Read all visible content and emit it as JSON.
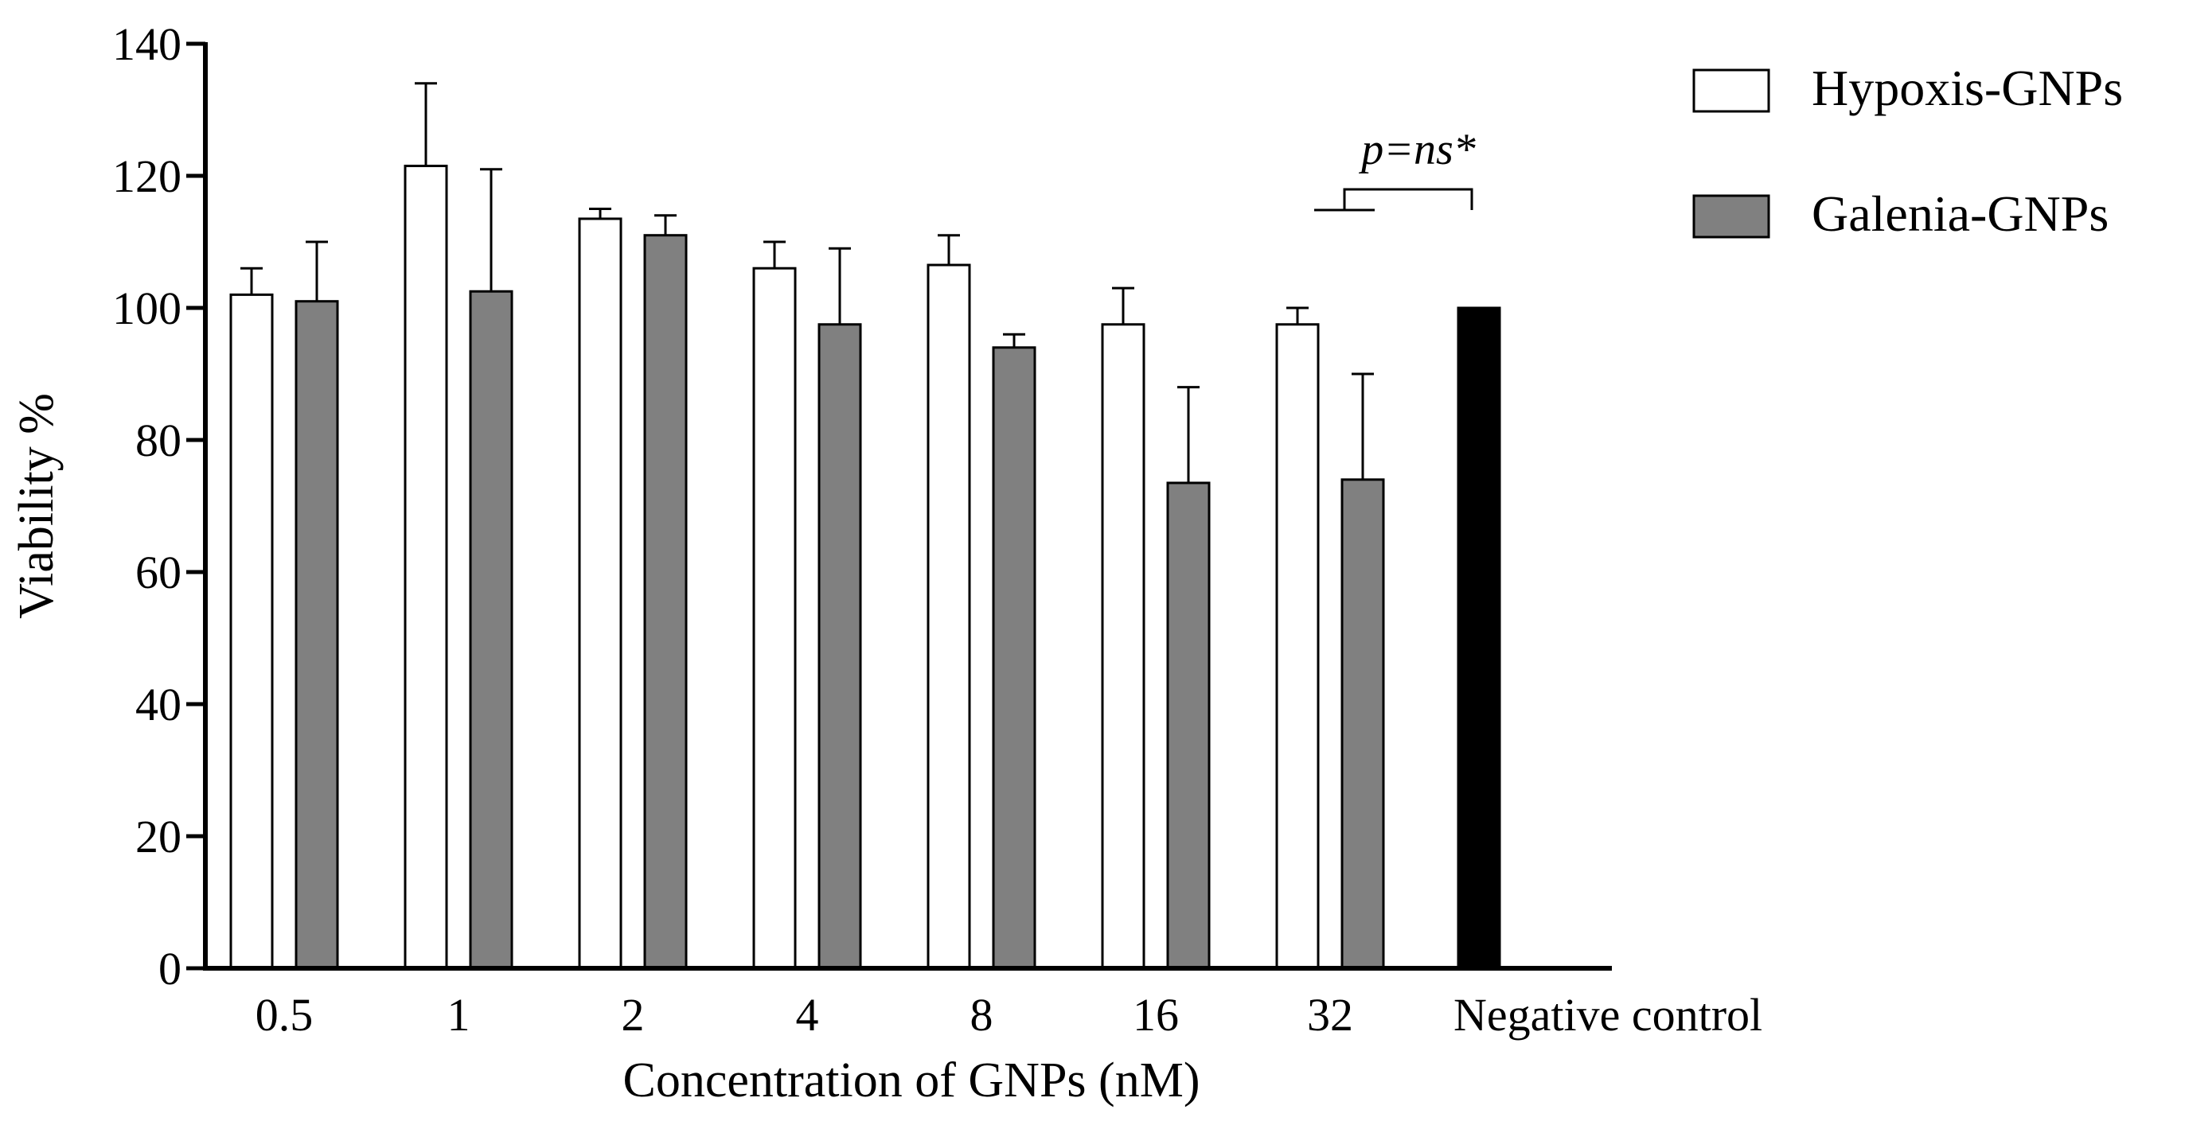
{
  "chart_data": {
    "type": "bar",
    "title": "",
    "xlabel": "Concentration of GNPs (nM)",
    "ylabel": "Viability %",
    "ylim": [
      0,
      140
    ],
    "yticks": [
      0,
      20,
      40,
      60,
      80,
      100,
      120,
      140
    ],
    "categories": [
      "0.5",
      "1",
      "2",
      "4",
      "8",
      "16",
      "32",
      "Negative control"
    ],
    "series": [
      {
        "name": "Hypoxis-GNPs",
        "color": "#ffffff",
        "values": [
          102,
          121.5,
          113.5,
          106,
          106.5,
          97.5,
          97.5,
          null
        ],
        "errors": [
          4,
          12.5,
          1.5,
          4,
          4.5,
          5.5,
          2.5,
          null
        ]
      },
      {
        "name": "Galenia-GNPs",
        "color": "#808080",
        "values": [
          101,
          102.5,
          111,
          97.5,
          94,
          73.5,
          74,
          null
        ],
        "errors": [
          9,
          18.5,
          3,
          11.5,
          2,
          14.5,
          16,
          null
        ]
      },
      {
        "name": "Negative control",
        "color": "#000000",
        "values": [
          null,
          null,
          null,
          null,
          null,
          null,
          null,
          100
        ],
        "errors": [
          null,
          null,
          null,
          null,
          null,
          null,
          null,
          null
        ]
      }
    ],
    "legend": {
      "position": "top-right"
    },
    "annotation": {
      "text": "p=ns*"
    },
    "grid": false
  }
}
